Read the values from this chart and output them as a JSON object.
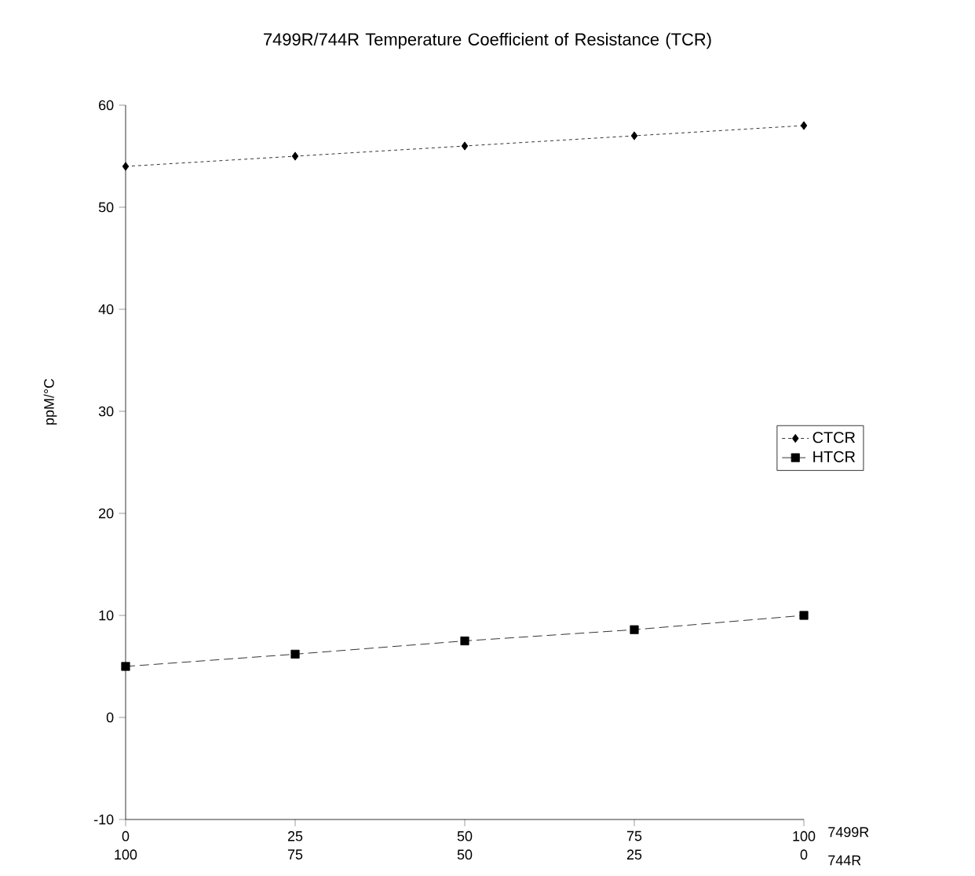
{
  "chart_data": {
    "type": "line",
    "title": "7499R/744R Temperature Coefficient of Resistance (TCR)",
    "ylabel": "ppM/°C",
    "xlabel": "7499R",
    "x2label": "744R",
    "x": [
      0,
      25,
      50,
      75,
      100
    ],
    "series": [
      {
        "name": "CTCR",
        "color": "#000000",
        "marker": "diamond",
        "line_style": "dotted",
        "values": [
          54,
          55,
          56,
          57,
          58
        ]
      },
      {
        "name": "HTCR",
        "color": "#000000",
        "marker": "square",
        "line_style": "dashed",
        "values": [
          5,
          6.2,
          7.5,
          8.6,
          10
        ]
      }
    ],
    "xlim": [
      0,
      100
    ],
    "xticks": [
      0,
      25,
      50,
      75,
      100
    ],
    "x2lim": [
      100,
      0
    ],
    "x2ticks": [
      100,
      75,
      50,
      25,
      0
    ],
    "ylim": [
      -10,
      60
    ],
    "yticks": [
      -10,
      0,
      10,
      20,
      30,
      40,
      50,
      60
    ],
    "legend": "right"
  }
}
